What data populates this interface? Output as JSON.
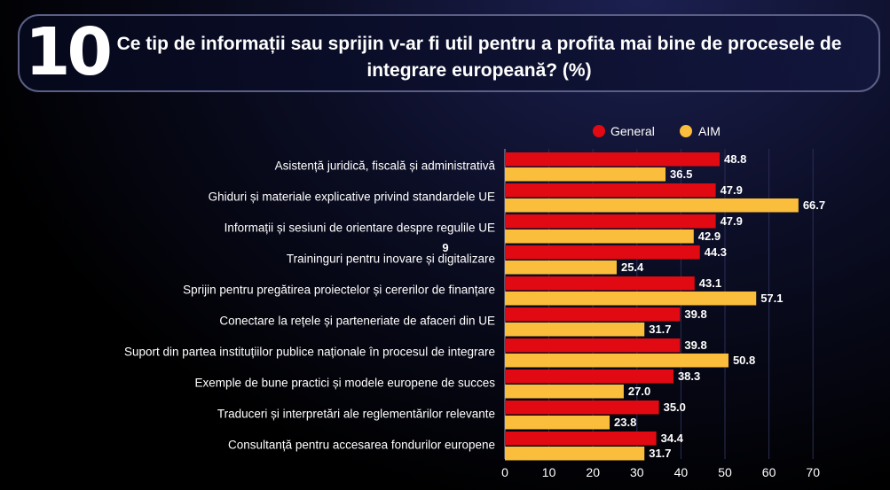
{
  "header": {
    "question_number": "10",
    "title": "Ce tip de informații sau sprijin v-ar fi util pentru a profita mai bine de procesele de integrare europeană? (%)"
  },
  "stray_label": "9",
  "colors": {
    "general": "#e10a12",
    "aim": "#fbbd3c",
    "text": "#ffffff",
    "grid": "#2a2e55"
  },
  "chart_data": {
    "type": "bar",
    "orientation": "horizontal",
    "title": "Ce tip de informații sau sprijin v-ar fi util pentru a profita mai bine de procesele de integrare europeană? (%)",
    "categories": [
      "Asistență juridică, fiscală și administrativă",
      "Ghiduri și materiale explicative privind standardele UE",
      "Informații și sesiuni de orientare despre regulile UE",
      "Traininguri pentru inovare și digitalizare",
      "Sprijin pentru pregătirea proiectelor și cererilor de finanțare",
      "Conectare la rețele și parteneriate de afaceri din UE",
      "Suport din partea instituțiilor publice naționale în procesul de integrare",
      "Exemple de bune practici și modele europene de succes",
      "Traduceri și interpretări ale reglementărilor relevante",
      "Consultanță pentru accesarea fondurilor europene"
    ],
    "series": [
      {
        "name": "General",
        "values": [
          48.8,
          47.9,
          47.9,
          44.3,
          43.1,
          39.8,
          39.8,
          38.3,
          35.0,
          34.4
        ],
        "labels": [
          "48.8",
          "47.9",
          "47.9",
          "44.3",
          "43.1",
          "39.8",
          "39.8",
          "38.3",
          "35.0",
          "34.4"
        ]
      },
      {
        "name": "AIM",
        "values": [
          36.5,
          66.7,
          42.9,
          25.4,
          57.1,
          31.7,
          50.8,
          27.0,
          23.8,
          31.7
        ],
        "labels": [
          "36.5",
          "66.7",
          "42.9",
          "25.4",
          "57.1",
          "31.7",
          "50.8",
          "27.0",
          "23.8",
          "31.7"
        ]
      }
    ],
    "xlim": [
      0,
      70
    ],
    "xticks": [
      "0",
      "10",
      "20",
      "30",
      "40",
      "50",
      "60",
      "70"
    ],
    "legend_position": "top-right",
    "grid": true
  }
}
